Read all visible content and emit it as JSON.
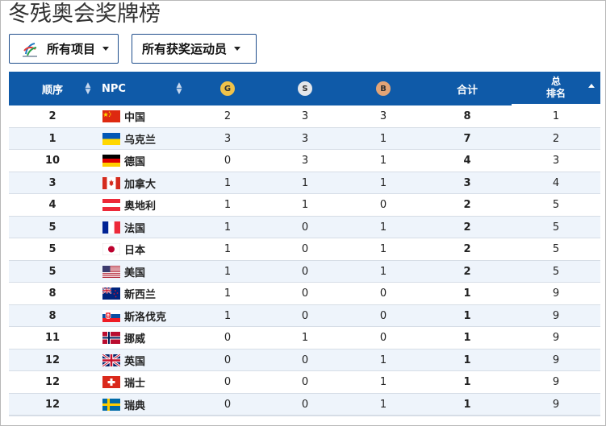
{
  "title": "冬残奥会奖牌榜",
  "filters": {
    "events_label": "所有项目",
    "athletes_label": "所有获奖运动员"
  },
  "columns": {
    "order": "顺序",
    "npc": "NPC",
    "gold": "G",
    "silver": "S",
    "bronze": "B",
    "total": "合计",
    "rank_line1": "总",
    "rank_line2": "排名"
  },
  "colors": {
    "header_bg": "#0f5aa8",
    "gold": "#f0c24a",
    "silver": "#e3e6ea",
    "bronze": "#e3a476",
    "row_alt": "#eef4fb"
  },
  "rows": [
    {
      "order": "2",
      "flag": "china-flag",
      "npc": "中国",
      "gold": "2",
      "silver": "3",
      "bronze": "3",
      "total": "8",
      "rank": "1"
    },
    {
      "order": "1",
      "flag": "ukraine-flag",
      "npc": "乌克兰",
      "gold": "3",
      "silver": "3",
      "bronze": "1",
      "total": "7",
      "rank": "2"
    },
    {
      "order": "10",
      "flag": "germany-flag",
      "npc": "德国",
      "gold": "0",
      "silver": "3",
      "bronze": "1",
      "total": "4",
      "rank": "3"
    },
    {
      "order": "3",
      "flag": "canada-flag",
      "npc": "加拿大",
      "gold": "1",
      "silver": "1",
      "bronze": "1",
      "total": "3",
      "rank": "4"
    },
    {
      "order": "4",
      "flag": "austria-flag",
      "npc": "奥地利",
      "gold": "1",
      "silver": "1",
      "bronze": "0",
      "total": "2",
      "rank": "5"
    },
    {
      "order": "5",
      "flag": "france-flag",
      "npc": "法国",
      "gold": "1",
      "silver": "0",
      "bronze": "1",
      "total": "2",
      "rank": "5"
    },
    {
      "order": "5",
      "flag": "japan-flag",
      "npc": "日本",
      "gold": "1",
      "silver": "0",
      "bronze": "1",
      "total": "2",
      "rank": "5"
    },
    {
      "order": "5",
      "flag": "usa-flag",
      "npc": "美国",
      "gold": "1",
      "silver": "0",
      "bronze": "1",
      "total": "2",
      "rank": "5"
    },
    {
      "order": "8",
      "flag": "new-zealand-flag",
      "npc": "新西兰",
      "gold": "1",
      "silver": "0",
      "bronze": "0",
      "total": "1",
      "rank": "9"
    },
    {
      "order": "8",
      "flag": "slovakia-flag",
      "npc": "斯洛伐克",
      "gold": "1",
      "silver": "0",
      "bronze": "0",
      "total": "1",
      "rank": "9"
    },
    {
      "order": "11",
      "flag": "norway-flag",
      "npc": "挪威",
      "gold": "0",
      "silver": "1",
      "bronze": "0",
      "total": "1",
      "rank": "9"
    },
    {
      "order": "12",
      "flag": "uk-flag",
      "npc": "英国",
      "gold": "0",
      "silver": "0",
      "bronze": "1",
      "total": "1",
      "rank": "9"
    },
    {
      "order": "12",
      "flag": "switzerland-flag",
      "npc": "瑞士",
      "gold": "0",
      "silver": "0",
      "bronze": "1",
      "total": "1",
      "rank": "9"
    },
    {
      "order": "12",
      "flag": "sweden-flag",
      "npc": "瑞典",
      "gold": "0",
      "silver": "0",
      "bronze": "1",
      "total": "1",
      "rank": "9"
    }
  ]
}
